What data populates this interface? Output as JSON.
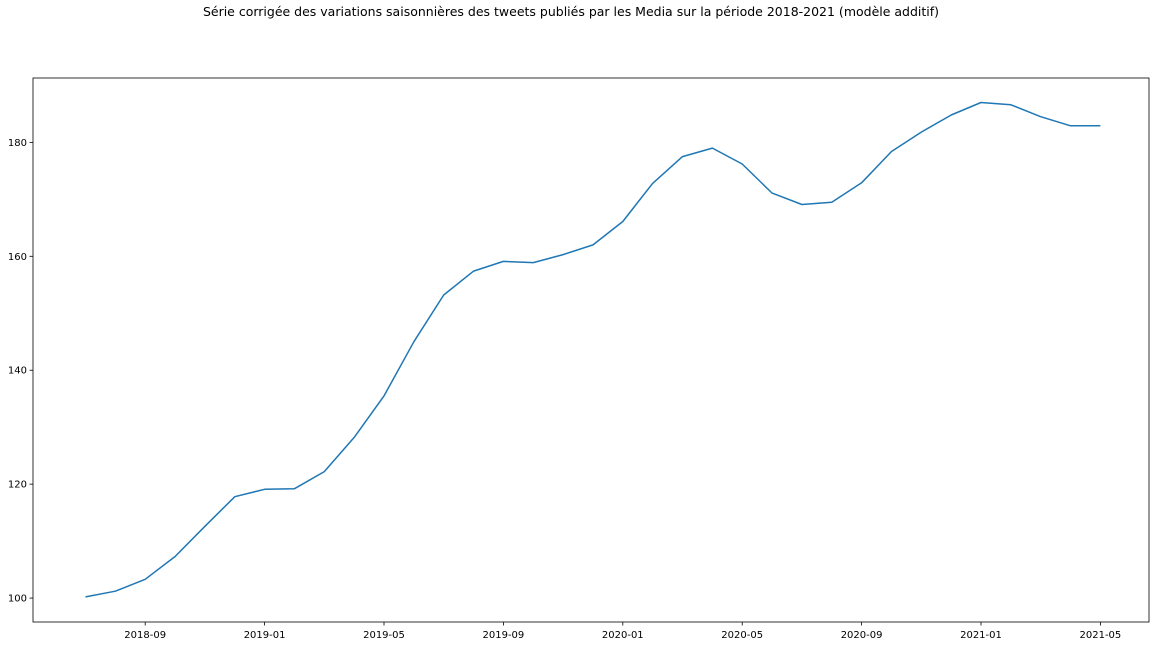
{
  "chart_data": {
    "type": "line",
    "title": "Série corrigée des variations saisonnières des tweets publiés par les Media sur la période 2018-2021 (modèle additif)",
    "xlabel": "",
    "ylabel": "",
    "grid": false,
    "x": [
      "2018-07",
      "2018-08",
      "2018-09",
      "2018-10",
      "2018-11",
      "2018-12",
      "2019-01",
      "2019-02",
      "2019-03",
      "2019-04",
      "2019-05",
      "2019-06",
      "2019-07",
      "2019-08",
      "2019-09",
      "2019-10",
      "2019-11",
      "2019-12",
      "2020-01",
      "2020-02",
      "2020-03",
      "2020-04",
      "2020-05",
      "2020-06",
      "2020-07",
      "2020-08",
      "2020-09",
      "2020-10",
      "2020-11",
      "2020-12",
      "2021-01",
      "2021-02",
      "2021-03",
      "2021-04",
      "2021-05"
    ],
    "series": [
      {
        "color": "#1f77b4",
        "values": [
          100.2,
          101.2,
          103.3,
          107.3,
          112.6,
          117.8,
          119.1,
          119.2,
          122.2,
          128.2,
          135.5,
          145.0,
          153.2,
          157.4,
          159.1,
          158.9,
          160.3,
          162.0,
          166.1,
          172.8,
          177.5,
          179.0,
          176.2,
          171.1,
          169.1,
          169.5,
          172.9,
          178.4,
          181.8,
          184.8,
          187.0,
          186.6,
          184.5,
          182.9,
          182.9
        ]
      }
    ],
    "xticks": [
      "2018-09",
      "2019-01",
      "2019-05",
      "2019-09",
      "2020-01",
      "2020-05",
      "2020-09",
      "2021-01",
      "2021-05"
    ],
    "yticks": [
      100,
      120,
      140,
      160,
      180
    ],
    "ylim": [
      95.8,
      191.3
    ]
  }
}
